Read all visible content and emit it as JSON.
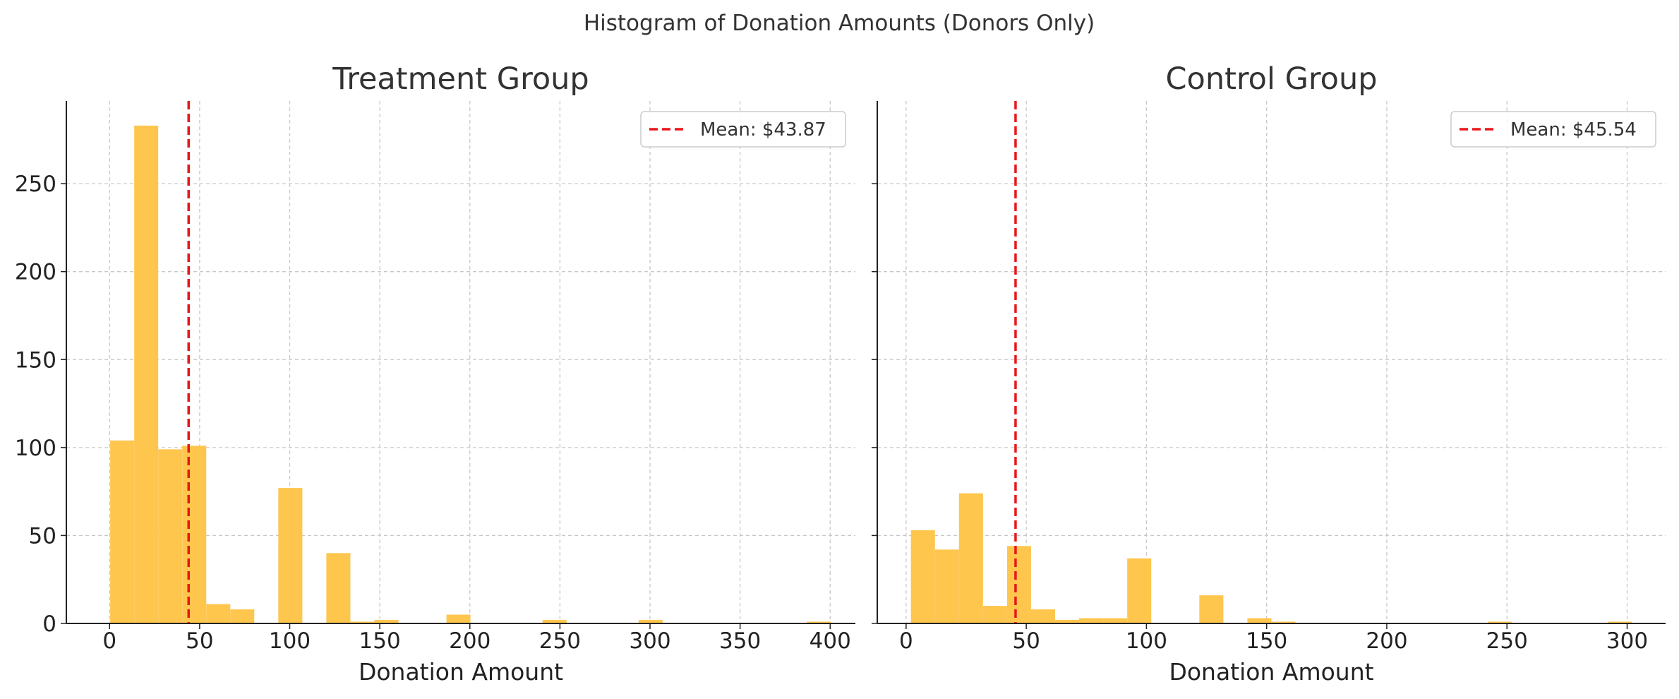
{
  "figure": {
    "suptitle": "Histogram of Donation Amounts (Donors Only)"
  },
  "colors": {
    "bar": "#ffc64e",
    "mean_line": "#e8171a",
    "grid": "#c8c8c8",
    "axis": "#222222"
  },
  "chart_data": [
    {
      "type": "bar",
      "subtype": "histogram",
      "title": "Treatment Group",
      "xlabel": "Donation Amount",
      "ylabel": "",
      "xlim": [
        -24,
        414
      ],
      "ylim": [
        0,
        297
      ],
      "xticks": [
        0,
        50,
        100,
        150,
        200,
        250,
        300,
        350,
        400
      ],
      "yticks": [
        0,
        50,
        100,
        150,
        200,
        250
      ],
      "grid": true,
      "bin_width": 13.33,
      "bins": [
        {
          "x0": 0.33,
          "x1": 13.67,
          "count": 104
        },
        {
          "x0": 13.67,
          "x1": 27.0,
          "count": 283
        },
        {
          "x0": 27.0,
          "x1": 40.33,
          "count": 99
        },
        {
          "x0": 40.33,
          "x1": 53.67,
          "count": 101
        },
        {
          "x0": 53.67,
          "x1": 67.0,
          "count": 11
        },
        {
          "x0": 67.0,
          "x1": 80.33,
          "count": 8
        },
        {
          "x0": 93.67,
          "x1": 107.0,
          "count": 77
        },
        {
          "x0": 120.33,
          "x1": 133.67,
          "count": 40
        },
        {
          "x0": 133.67,
          "x1": 147.0,
          "count": 1
        },
        {
          "x0": 147.0,
          "x1": 160.33,
          "count": 2
        },
        {
          "x0": 187.0,
          "x1": 200.33,
          "count": 5
        },
        {
          "x0": 240.33,
          "x1": 253.67,
          "count": 2
        },
        {
          "x0": 293.67,
          "x1": 307.0,
          "count": 2
        },
        {
          "x0": 387.0,
          "x1": 400.33,
          "count": 1
        }
      ],
      "mean": 43.87,
      "legend": {
        "label": "Mean: $43.87",
        "position": "top-right"
      }
    },
    {
      "type": "bar",
      "subtype": "histogram",
      "title": "Control Group",
      "xlabel": "Donation Amount",
      "ylabel": "",
      "xlim": [
        -12,
        316
      ],
      "ylim": [
        0,
        297
      ],
      "xticks": [
        0,
        50,
        100,
        150,
        200,
        250,
        300
      ],
      "yticks": [
        0,
        50,
        100,
        150,
        200,
        250
      ],
      "grid": true,
      "bin_width": 10.0,
      "bins": [
        {
          "x0": 2.0,
          "x1": 12.0,
          "count": 53
        },
        {
          "x0": 12.0,
          "x1": 22.0,
          "count": 42
        },
        {
          "x0": 22.0,
          "x1": 32.0,
          "count": 74
        },
        {
          "x0": 32.0,
          "x1": 42.0,
          "count": 10
        },
        {
          "x0": 42.0,
          "x1": 52.0,
          "count": 44
        },
        {
          "x0": 52.0,
          "x1": 62.0,
          "count": 8
        },
        {
          "x0": 62.0,
          "x1": 72.0,
          "count": 2
        },
        {
          "x0": 72.0,
          "x1": 82.0,
          "count": 3
        },
        {
          "x0": 82.0,
          "x1": 92.0,
          "count": 3
        },
        {
          "x0": 92.0,
          "x1": 102.0,
          "count": 37
        },
        {
          "x0": 122.0,
          "x1": 132.0,
          "count": 16
        },
        {
          "x0": 142.0,
          "x1": 152.0,
          "count": 3
        },
        {
          "x0": 152.0,
          "x1": 162.0,
          "count": 1
        },
        {
          "x0": 242.0,
          "x1": 252.0,
          "count": 1
        },
        {
          "x0": 292.0,
          "x1": 302.0,
          "count": 1
        }
      ],
      "mean": 45.54,
      "legend": {
        "label": "Mean: $45.54",
        "position": "top-right"
      }
    }
  ]
}
